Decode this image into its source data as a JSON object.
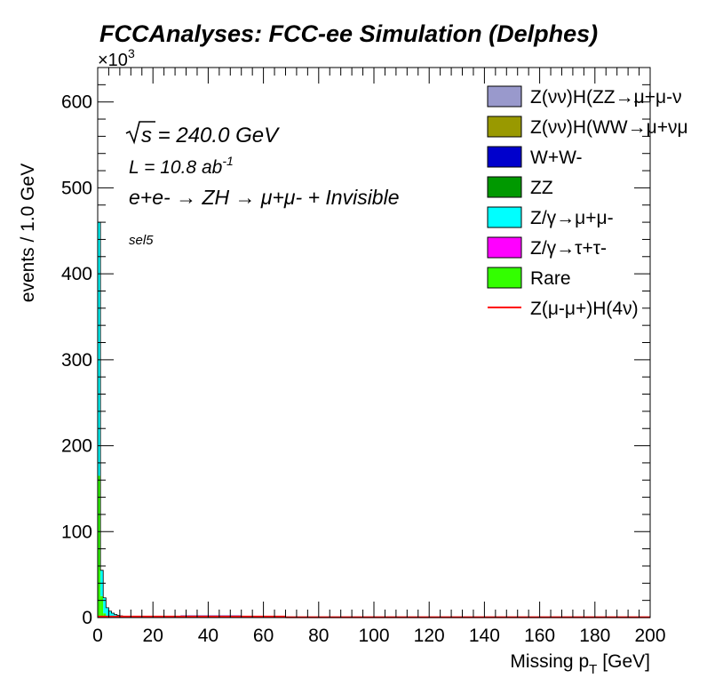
{
  "chart_data": {
    "type": "bar",
    "stacked": true,
    "title": "FCCAnalyses: FCC-ee Simulation (Delphes)",
    "xlabel": "Missing p",
    "xlabel_sub": "T",
    "xlabel_unit": "[GeV]",
    "ylabel": "events / 1.0 GeV",
    "y_multiplier": "×10",
    "y_multiplier_exp": "3",
    "xlim": [
      0,
      200
    ],
    "ylim": [
      0,
      640
    ],
    "x_ticks": [
      0,
      20,
      40,
      60,
      80,
      100,
      120,
      140,
      160,
      180,
      200
    ],
    "y_ticks": [
      0,
      100,
      200,
      300,
      400,
      500,
      600
    ],
    "grid": false,
    "legend_position": "top-right",
    "annotations": {
      "sqrt_s": "s",
      "energy": " = 240.0 GeV",
      "lumi": "L = 10.8 ab",
      "lumi_exp": "-1",
      "process": "e+e- → ZH → μ+μ- + Invisible",
      "selection": "sel5"
    },
    "x": [
      0.5,
      1.5,
      2.5,
      3.5,
      4.5,
      5.5,
      6.5,
      7.5,
      8.5,
      9.5,
      10.5,
      11.5,
      12.5
    ],
    "series": [
      {
        "name": "Rare",
        "color": "#33ff00",
        "values": [
          165,
          25,
          5,
          1.5,
          0.5,
          0.2,
          0.1,
          0.05,
          0.02,
          0.01,
          0,
          0,
          0
        ]
      },
      {
        "name": "Z/γ→μ+μ-",
        "color": "#00ffff",
        "values": [
          295,
          30,
          18,
          10,
          7,
          5,
          3.5,
          2.5,
          2,
          1.5,
          1,
          0.5,
          0.2
        ]
      }
    ],
    "ww_band": {
      "name": "W+W-",
      "color": "#0000cc",
      "x_range": [
        30,
        52
      ],
      "value": 2.5
    },
    "signal": {
      "name": "Z(μ-μ+)H(4ν)",
      "color": "#ff0000",
      "x_range": [
        0,
        68
      ],
      "value": 1.2
    },
    "legend": [
      {
        "label": "Z(νν)H(ZZ→μ+μ-ν",
        "color": "#9999cc",
        "kind": "box"
      },
      {
        "label": "Z(νν)H(WW→μ+νμ",
        "color": "#999900",
        "kind": "box"
      },
      {
        "label": "W+W-",
        "color": "#0000cc",
        "kind": "box"
      },
      {
        "label": "ZZ",
        "color": "#009900",
        "kind": "box"
      },
      {
        "label": "Z/γ→μ+μ-",
        "color": "#00ffff",
        "kind": "box"
      },
      {
        "label": "Z/γ→τ+τ-",
        "color": "#ff00ff",
        "kind": "box"
      },
      {
        "label": "Rare",
        "color": "#33ff00",
        "kind": "box"
      },
      {
        "label": "Z(μ-μ+)H(4ν)",
        "color": "#ff0000",
        "kind": "line"
      }
    ]
  }
}
